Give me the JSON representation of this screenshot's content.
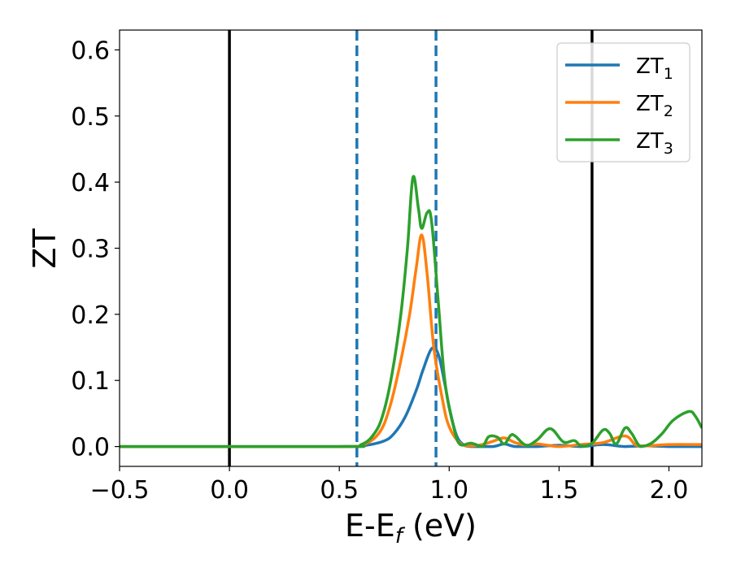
{
  "chart_data": {
    "type": "line",
    "title": "",
    "xlabel": "E-E",
    "xlabel_sub": "f",
    "xlabel_unit": " (eV)",
    "ylabel": "ZT",
    "xlim": [
      -0.5,
      2.15
    ],
    "ylim": [
      -0.03,
      0.63
    ],
    "xticks": [
      -0.5,
      0.0,
      0.5,
      1.0,
      1.5,
      2.0
    ],
    "xtick_labels": [
      "−0.5",
      "0.0",
      "0.5",
      "1.0",
      "1.5",
      "2.0"
    ],
    "yticks": [
      0.0,
      0.1,
      0.2,
      0.3,
      0.4,
      0.5,
      0.6
    ],
    "ytick_labels": [
      "0.0",
      "0.1",
      "0.2",
      "0.3",
      "0.4",
      "0.5",
      "0.6"
    ],
    "grid": false,
    "legend_position": "top-right",
    "vertical_lines": [
      {
        "x": 0.0,
        "style": "solid",
        "color": "#000000"
      },
      {
        "x": 1.65,
        "style": "solid",
        "color": "#000000"
      },
      {
        "x": 0.58,
        "style": "dashed",
        "color": "#1f77b4"
      },
      {
        "x": 0.94,
        "style": "dashed",
        "color": "#1f77b4"
      }
    ],
    "series": [
      {
        "name": "ZT",
        "name_sub": "1",
        "color": "#1f77b4",
        "x": [
          -0.5,
          0.5,
          0.6,
          0.7,
          0.75,
          0.8,
          0.85,
          0.88,
          0.92,
          0.95,
          0.98,
          1.0,
          1.03,
          1.06,
          1.1,
          1.2,
          1.25,
          1.3,
          1.4,
          1.5,
          1.6,
          1.7,
          1.8,
          1.9,
          2.0,
          2.15
        ],
        "values": [
          0.0,
          0.0,
          0.001,
          0.008,
          0.02,
          0.045,
          0.085,
          0.115,
          0.148,
          0.14,
          0.095,
          0.06,
          0.02,
          0.004,
          0.0,
          0.0,
          0.004,
          0.0,
          0.0,
          0.002,
          0.0,
          0.003,
          0.0,
          0.001,
          0.0,
          0.0
        ]
      },
      {
        "name": "ZT",
        "name_sub": "2",
        "color": "#ff7f0e",
        "x": [
          -0.5,
          0.5,
          0.6,
          0.68,
          0.73,
          0.78,
          0.82,
          0.85,
          0.875,
          0.9,
          0.93,
          0.97,
          1.0,
          1.05,
          1.1,
          1.15,
          1.2,
          1.25,
          1.3,
          1.35,
          1.4,
          1.5,
          1.6,
          1.7,
          1.8,
          1.85,
          1.9,
          2.0,
          2.15
        ],
        "values": [
          0.0,
          0.0,
          0.002,
          0.02,
          0.06,
          0.13,
          0.2,
          0.27,
          0.32,
          0.26,
          0.15,
          0.07,
          0.03,
          0.005,
          0.001,
          0.003,
          0.008,
          0.013,
          0.006,
          0.002,
          0.004,
          0.0,
          0.003,
          0.006,
          0.016,
          0.002,
          0.001,
          0.003,
          0.003
        ]
      },
      {
        "name": "ZT",
        "name_sub": "3",
        "color": "#2ca02c",
        "x": [
          -0.5,
          0.5,
          0.6,
          0.66,
          0.7,
          0.74,
          0.78,
          0.81,
          0.835,
          0.86,
          0.875,
          0.9,
          0.92,
          0.95,
          0.98,
          1.02,
          1.05,
          1.1,
          1.15,
          1.18,
          1.22,
          1.25,
          1.28,
          1.3,
          1.35,
          1.4,
          1.46,
          1.52,
          1.57,
          1.6,
          1.65,
          1.7,
          1.73,
          1.76,
          1.8,
          1.83,
          1.87,
          1.92,
          1.97,
          2.02,
          2.09,
          2.12,
          2.15
        ],
        "values": [
          0.0,
          0.0,
          0.003,
          0.02,
          0.05,
          0.11,
          0.2,
          0.3,
          0.407,
          0.36,
          0.33,
          0.354,
          0.34,
          0.22,
          0.1,
          0.03,
          0.003,
          0.005,
          0.0,
          0.015,
          0.014,
          0.004,
          0.017,
          0.016,
          0.002,
          0.01,
          0.027,
          0.007,
          0.009,
          0.001,
          0.005,
          0.025,
          0.02,
          0.004,
          0.028,
          0.02,
          0.0,
          0.005,
          0.02,
          0.04,
          0.053,
          0.046,
          0.028
        ]
      }
    ]
  }
}
